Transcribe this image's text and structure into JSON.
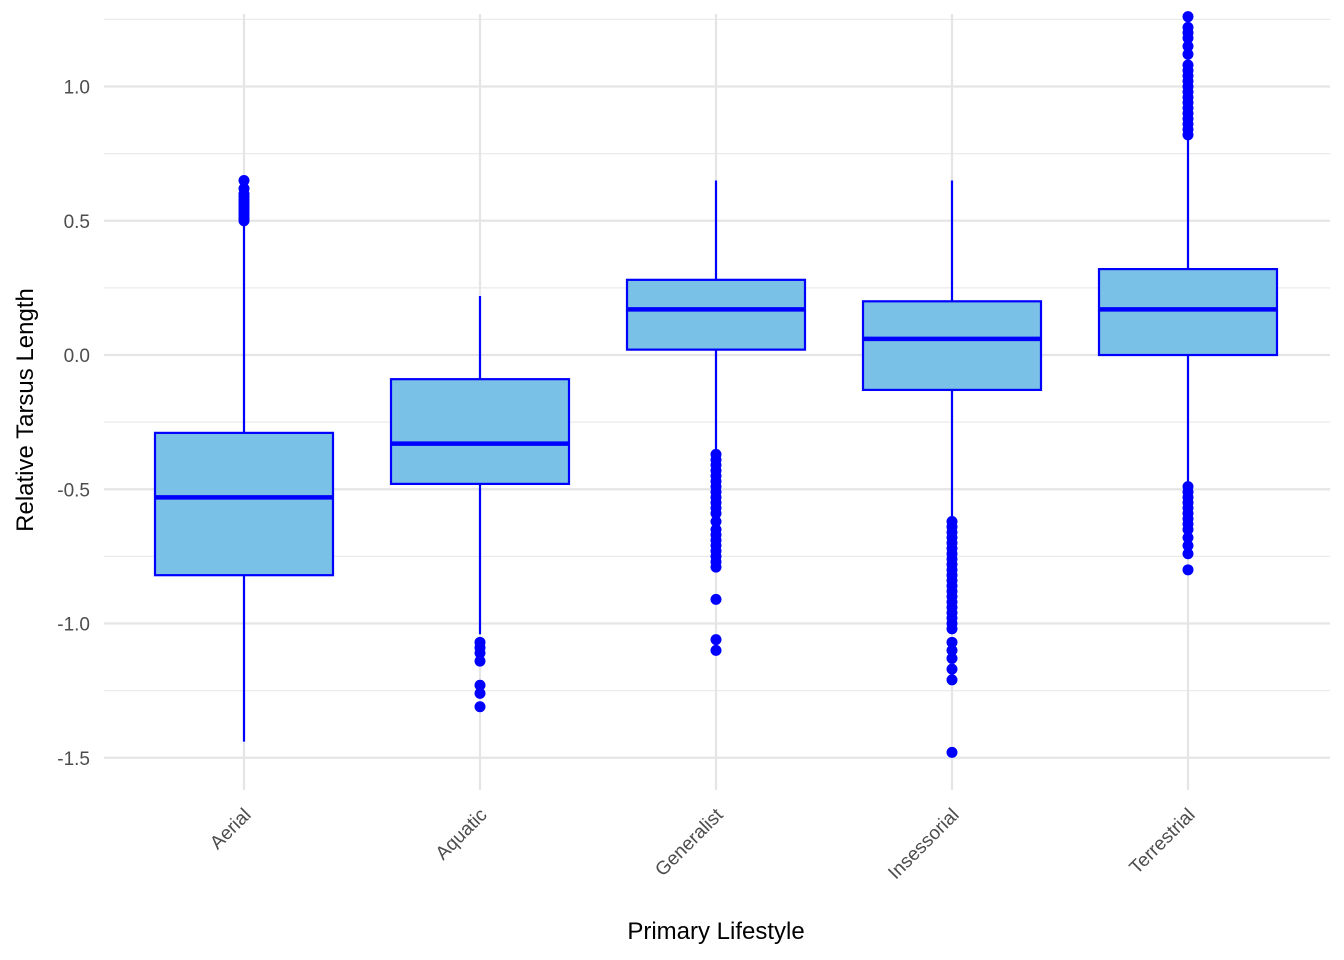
{
  "chart_data": {
    "type": "box",
    "xlabel": "Primary Lifestyle",
    "ylabel": "Relative Tarsus Length",
    "ylim": [
      -1.62,
      1.27
    ],
    "yticks": [
      -1.5,
      -1.0,
      -0.5,
      0.0,
      0.5,
      1.0
    ],
    "ytick_labels": [
      "-1.5",
      "-1.0",
      "-0.5",
      "0.0",
      "0.5",
      "1.0"
    ],
    "grid": true,
    "fill_color": "#79C1E6",
    "stroke_color": "#0000FF",
    "categories": [
      "Aerial",
      "Aquatic",
      "Generalist",
      "Insessorial",
      "Terrestrial"
    ],
    "boxes": [
      {
        "category": "Aerial",
        "whisker_low": -1.44,
        "q1": -0.82,
        "median": -0.53,
        "q3": -0.29,
        "whisker_high": 0.49,
        "outliers": [
          0.5,
          0.51,
          0.52,
          0.53,
          0.54,
          0.55,
          0.56,
          0.57,
          0.58,
          0.59,
          0.6,
          0.62,
          0.65
        ]
      },
      {
        "category": "Aquatic",
        "whisker_low": -1.04,
        "q1": -0.48,
        "median": -0.33,
        "q3": -0.09,
        "whisker_high": 0.22,
        "outliers": [
          -1.07,
          -1.09,
          -1.11,
          -1.14,
          -1.23,
          -1.26,
          -1.31
        ]
      },
      {
        "category": "Generalist",
        "whisker_low": -0.35,
        "q1": 0.02,
        "median": 0.17,
        "q3": 0.28,
        "whisker_high": 0.65,
        "outliers": [
          -0.37,
          -0.39,
          -0.41,
          -0.43,
          -0.45,
          -0.47,
          -0.49,
          -0.51,
          -0.53,
          -0.55,
          -0.57,
          -0.59,
          -0.62,
          -0.65,
          -0.67,
          -0.69,
          -0.71,
          -0.73,
          -0.75,
          -0.77,
          -0.79,
          -0.91,
          -1.06,
          -1.1
        ]
      },
      {
        "category": "Insessorial",
        "whisker_low": -0.61,
        "q1": -0.13,
        "median": 0.06,
        "q3": 0.2,
        "whisker_high": 0.65,
        "outliers": [
          -0.62,
          -0.64,
          -0.66,
          -0.68,
          -0.7,
          -0.72,
          -0.74,
          -0.76,
          -0.78,
          -0.8,
          -0.82,
          -0.84,
          -0.86,
          -0.88,
          -0.9,
          -0.92,
          -0.94,
          -0.96,
          -0.98,
          -1.0,
          -1.02,
          -1.07,
          -1.1,
          -1.13,
          -1.17,
          -1.21,
          -1.48
        ]
      },
      {
        "category": "Terrestrial",
        "whisker_low": -0.48,
        "q1": 0.0,
        "median": 0.17,
        "q3": 0.32,
        "whisker_high": 0.81,
        "outliers": [
          0.82,
          0.84,
          0.86,
          0.88,
          0.9,
          0.92,
          0.94,
          0.96,
          0.98,
          1.0,
          1.02,
          1.04,
          1.06,
          1.08,
          1.12,
          1.15,
          1.18,
          1.2,
          1.22,
          1.26,
          -0.49,
          -0.51,
          -0.53,
          -0.55,
          -0.57,
          -0.59,
          -0.61,
          -0.63,
          -0.65,
          -0.68,
          -0.71,
          -0.74,
          -0.8
        ]
      }
    ]
  }
}
